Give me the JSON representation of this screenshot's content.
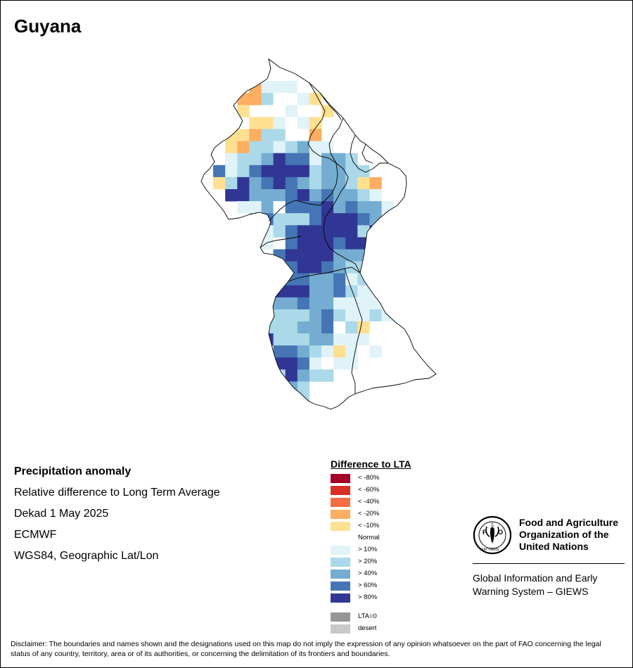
{
  "title": "Guyana",
  "info": {
    "heading": "Precipitation anomaly",
    "subtitle": "Relative difference to Long Term Average",
    "period": "Dekad 1 May 2025",
    "source": "ECMWF",
    "projection": "WGS84, Geographic Lat/Lon"
  },
  "legend": {
    "title": "Difference to LTA",
    "classes": [
      {
        "label": "< -80%",
        "color": "#a50026"
      },
      {
        "label": "< -60%",
        "color": "#d73027"
      },
      {
        "label": "< -40%",
        "color": "#f46d43"
      },
      {
        "label": "< -20%",
        "color": "#fdae61"
      },
      {
        "label": "< -10%",
        "color": "#fee090"
      },
      {
        "label": "Normal",
        "color": "#ffffff"
      },
      {
        "label": "> 10%",
        "color": "#e0f3f8"
      },
      {
        "label": "> 20%",
        "color": "#abd9e9"
      },
      {
        "label": "> 40%",
        "color": "#74add1"
      },
      {
        "label": "> 60%",
        "color": "#4575b4"
      },
      {
        "label": "> 80%",
        "color": "#313695"
      }
    ],
    "extra": [
      {
        "label": "LTA=0",
        "color": "#969696"
      },
      {
        "label": "desert",
        "color": "#c8c8c8"
      }
    ]
  },
  "map_grid": {
    "cell_codes": {
      "-2": "< -20%",
      "-1": "< -10%",
      "0": "Normal",
      "1": "> 10%",
      "2": "> 20%",
      "3": "> 40%",
      "4": "> 60%",
      "5": "> 80%"
    },
    "rows": [
      "0000000000000000000",
      "0011000001000000000",
      "0-2-2000002000000000",
      "0-100001000-1000000000",
      "0000000000-10000000000",
      "00-1-1-1000000000000000",
      "0-1-1-1-1000000000000000",
      "-2-2-1000000000000000000"
    ]
  },
  "logo": {
    "org_name_line1": "Food and Agriculture",
    "org_name_line2": "Organization of the",
    "org_name_line3": "United Nations",
    "system_line1": "Global Information and Early",
    "system_line2": "Warning System – GIEWS",
    "emblem_text": "FAO",
    "motto_text": "FIAT PANIS"
  },
  "disclaimer": "Disclaimer: The boundaries and names shown and the designations used on this map do not imply the expression of any opinion whatsoever on the part of FAO concerning the legal status of any country, territory, area or of its authorities, or concerning the delimitation of its frontiers and boundaries."
}
